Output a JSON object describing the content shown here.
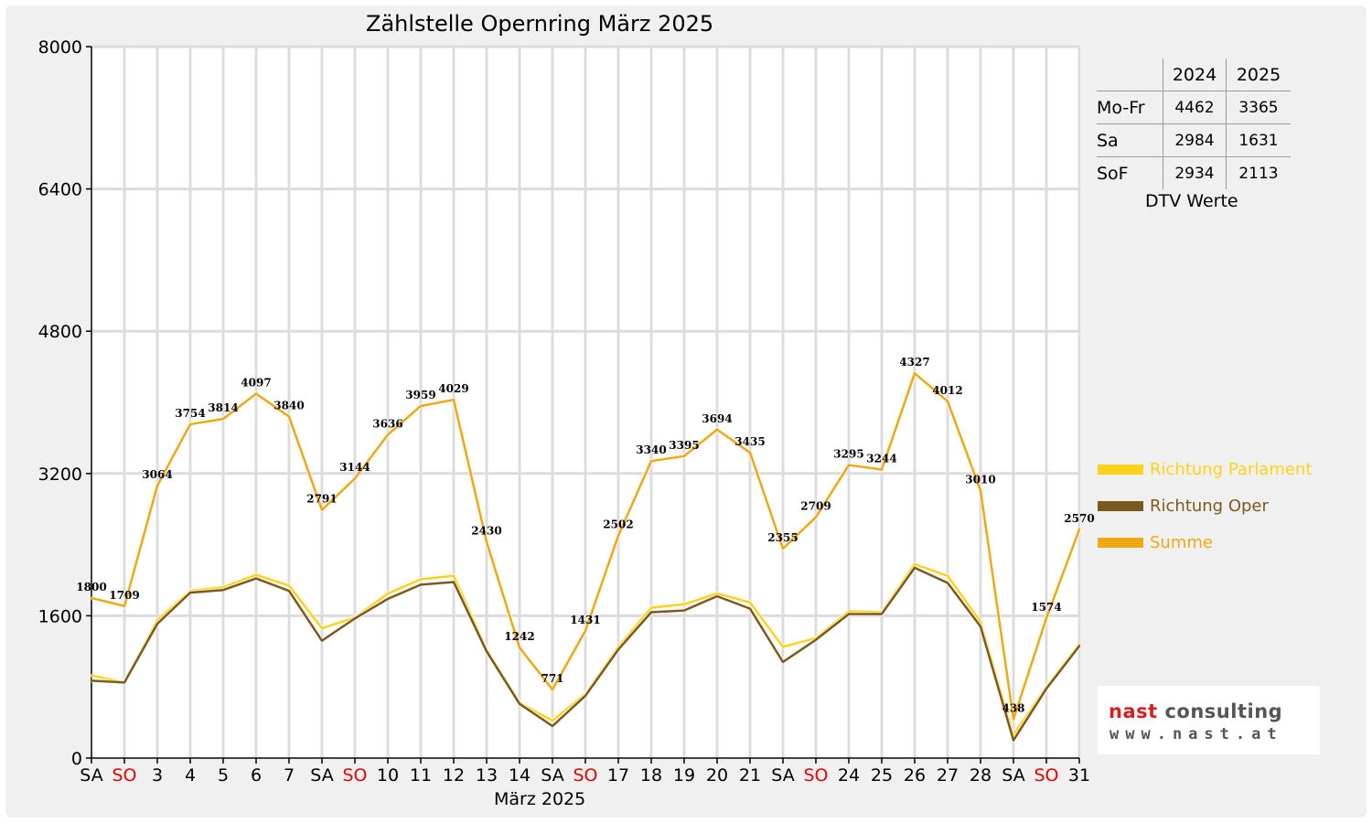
{
  "chart_data": {
    "type": "line",
    "title": "Zählstelle Opernring März 2025",
    "xlabel": "März 2025",
    "ylabel": "",
    "ylim": [
      0,
      8000
    ],
    "yticks": [
      0,
      1600,
      3200,
      4800,
      6400,
      8000
    ],
    "grid": true,
    "legend_position": "right",
    "categories": [
      "SA",
      "SO",
      "3",
      "4",
      "5",
      "6",
      "7",
      "SA",
      "SO",
      "10",
      "11",
      "12",
      "13",
      "14",
      "SA",
      "SO",
      "17",
      "18",
      "19",
      "20",
      "21",
      "SA",
      "SO",
      "24",
      "25",
      "26",
      "27",
      "28",
      "SA",
      "SO",
      "31"
    ],
    "weekend_color": "#e00000",
    "series": [
      {
        "name": "Richtung Parlament",
        "color": "#ffd21a",
        "values": [
          930,
          850,
          1550,
          1880,
          1920,
          2060,
          1940,
          1460,
          1580,
          1850,
          2010,
          2050,
          1220,
          620,
          420,
          720,
          1250,
          1690,
          1730,
          1850,
          1750,
          1250,
          1350,
          1650,
          1640,
          2180,
          2050,
          1530,
          260,
          800,
          1280
        ]
      },
      {
        "name": "Richtung Oper",
        "color": "#7a5a1e",
        "values": [
          870,
          850,
          1510,
          1860,
          1890,
          2020,
          1880,
          1320,
          1570,
          1790,
          1950,
          1980,
          1200,
          610,
          360,
          700,
          1220,
          1640,
          1660,
          1820,
          1680,
          1080,
          1330,
          1620,
          1620,
          2140,
          1970,
          1480,
          200,
          780,
          1260
        ]
      },
      {
        "name": "Summe",
        "color": "#f0a812",
        "values": [
          1800,
          1709,
          3064,
          3754,
          3814,
          4097,
          3840,
          2791,
          3144,
          3636,
          3959,
          4029,
          2430,
          1242,
          771,
          1431,
          2502,
          3340,
          3395,
          3694,
          3435,
          2355,
          2709,
          3295,
          3244,
          4327,
          4012,
          3010,
          438,
          1574,
          2570
        ]
      }
    ],
    "data_labels": [
      "1800",
      "1709",
      "3064",
      "3754",
      "3814",
      "4097",
      "3840",
      "2791",
      "3144",
      "3636",
      "3959",
      "4029",
      "2430",
      "1242",
      "771",
      "1431",
      "2502",
      "3340",
      "3395",
      "3694",
      "3435",
      "2355",
      "2709",
      "3295",
      "3244",
      "4327",
      "4012",
      "3010",
      "438",
      "1574",
      "2570"
    ]
  },
  "dtv_table": {
    "headers": [
      "",
      "2024",
      "2025"
    ],
    "rows": [
      [
        "Mo-Fr",
        "4462",
        "3365"
      ],
      [
        "Sa",
        "2984",
        "1631"
      ],
      [
        "SoF",
        "2934",
        "2113"
      ]
    ],
    "caption": "DTV Werte"
  },
  "logo": {
    "line1a": "nast",
    "line1b": " consulting",
    "line2": "www.nast.at"
  }
}
